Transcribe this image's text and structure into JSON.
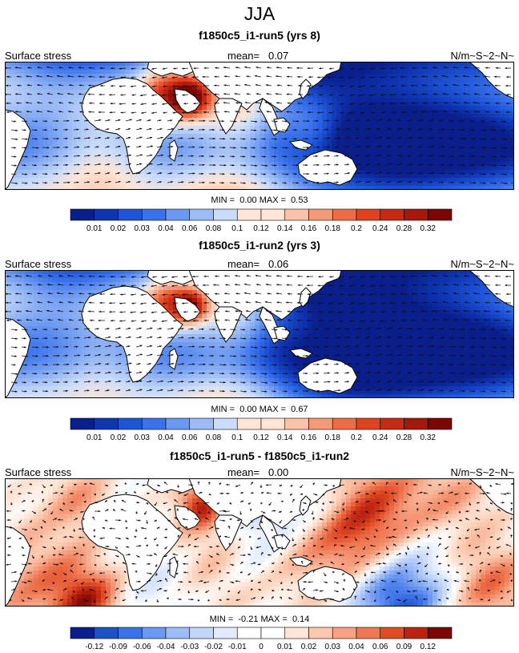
{
  "title": "JJA",
  "colors": {
    "land": "#ffffff",
    "coast": "#000000",
    "arrow": "#111111",
    "seq_scale": [
      "#0a1e8c",
      "#0f35b3",
      "#1e55d8",
      "#3a72ee",
      "#6b98f2",
      "#9dbcf6",
      "#cadcfb",
      "#ffe5d6",
      "#fbc2aa",
      "#f49a78",
      "#ee6c45",
      "#e2411f",
      "#c72a14",
      "#a5180c",
      "#7a0704"
    ],
    "div_scale": [
      "#0a1e8c",
      "#1e50c8",
      "#3b72ea",
      "#6b98f2",
      "#9dbcf6",
      "#c2d6fa",
      "#e1ebfd",
      "#ffffff",
      "#fde6d8",
      "#fbc8ae",
      "#f6a283",
      "#ef7650",
      "#e04a25",
      "#bc2210",
      "#7a0704"
    ]
  },
  "panels": [
    {
      "id": "run5",
      "title": "f1850c5_i1-run5 (yrs 8)",
      "left_label": "Surface stress",
      "mean_label": "mean=",
      "mean_value": "0.07",
      "units": "N/m~S~2~N~",
      "min_label": "MIN =",
      "min_value": "0.00",
      "max_label": "MAX =",
      "max_value": "0.53",
      "scale": "seq",
      "colorbar_labels": [
        "0.01",
        "0.02",
        "0.03",
        "0.04",
        "0.06",
        "0.08",
        "0.1",
        "0.12",
        "0.14",
        "0.16",
        "0.18",
        "0.2",
        "0.24",
        "0.28",
        "0.32"
      ]
    },
    {
      "id": "run2",
      "title": "f1850c5_i1-run2 (yrs 3)",
      "left_label": "Surface stress",
      "mean_label": "mean=",
      "mean_value": "0.06",
      "units": "N/m~S~2~N~",
      "min_label": "MIN =",
      "min_value": "0.00",
      "max_label": "MAX =",
      "max_value": "0.67",
      "scale": "seq",
      "colorbar_labels": [
        "0.01",
        "0.02",
        "0.03",
        "0.04",
        "0.06",
        "0.08",
        "0.1",
        "0.12",
        "0.14",
        "0.16",
        "0.18",
        "0.2",
        "0.24",
        "0.28",
        "0.32"
      ]
    },
    {
      "id": "diff",
      "title": "f1850c5_i1-run5 - f1850c5_i1-run2",
      "left_label": "Surface stress",
      "mean_label": "mean=",
      "mean_value": "0.00",
      "units": "N/m~S~2~N~",
      "min_label": "MIN =",
      "min_value": "-0.21",
      "max_label": "MAX =",
      "max_value": "0.14",
      "scale": "div",
      "colorbar_labels": [
        "-0.12",
        "-0.09",
        "-0.06",
        "-0.04",
        "-0.03",
        "-0.02",
        "-0.01",
        "0",
        "0.01",
        "0.02",
        "0.03",
        "0.04",
        "0.06",
        "0.09",
        "0.12"
      ]
    }
  ]
}
